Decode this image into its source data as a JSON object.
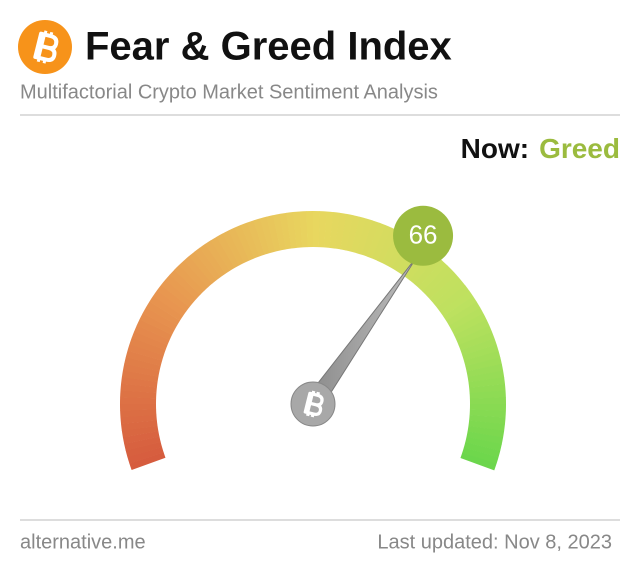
{
  "chart_data": {
    "type": "gauge",
    "title": "Fear & Greed Index",
    "subtitle": "Multifactorial Crypto Market Sentiment Analysis",
    "status_prefix": "Now:",
    "status": "Greed",
    "value": 66,
    "ylim": [
      0,
      100
    ],
    "color": "#9bbb3f",
    "source": "alternative.me",
    "updated": "Last updated: Nov 8, 2023"
  }
}
